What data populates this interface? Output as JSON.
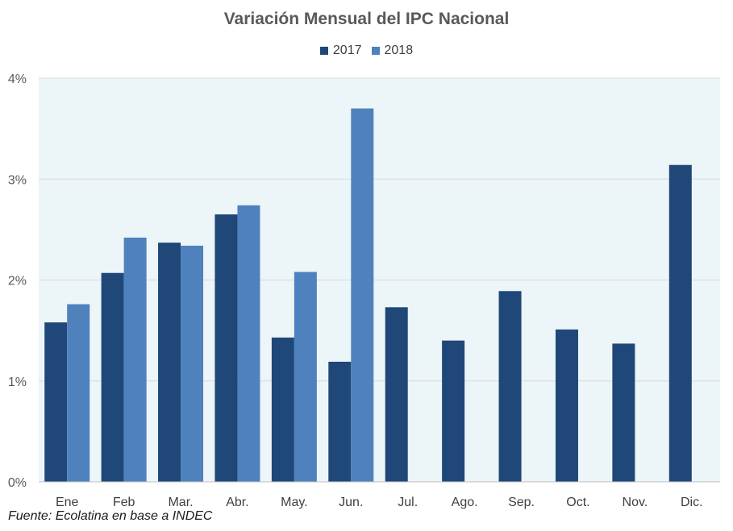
{
  "colors": {
    "series_2017": "#1f4778",
    "series_2018": "#4f81bd",
    "plot_bg": "#ecf5f8",
    "grid": "#d9d9d9"
  },
  "source": "Fuente: Ecolatina en base a INDEC",
  "chart_data": {
    "type": "bar",
    "title": "Variación Mensual del IPC Nacional",
    "xlabel": "",
    "ylabel": "",
    "categories": [
      "Ene",
      "Feb",
      "Mar.",
      "Abr.",
      "May.",
      "Jun.",
      "Jul.",
      "Ago.",
      "Sep.",
      "Oct.",
      "Nov.",
      "Dic."
    ],
    "series": [
      {
        "name": "2017",
        "values": [
          1.58,
          2.07,
          2.37,
          2.65,
          1.43,
          1.19,
          1.73,
          1.4,
          1.89,
          1.51,
          1.37,
          3.14
        ]
      },
      {
        "name": "2018",
        "values": [
          1.76,
          2.42,
          2.34,
          2.74,
          2.08,
          3.7,
          null,
          null,
          null,
          null,
          null,
          null
        ]
      }
    ],
    "ylim": [
      0,
      4
    ],
    "yticks": [
      0,
      1,
      2,
      3,
      4
    ],
    "ytick_labels": [
      "0%",
      "1%",
      "2%",
      "3%",
      "4%"
    ],
    "grid": true,
    "legend_position": "top-center"
  }
}
